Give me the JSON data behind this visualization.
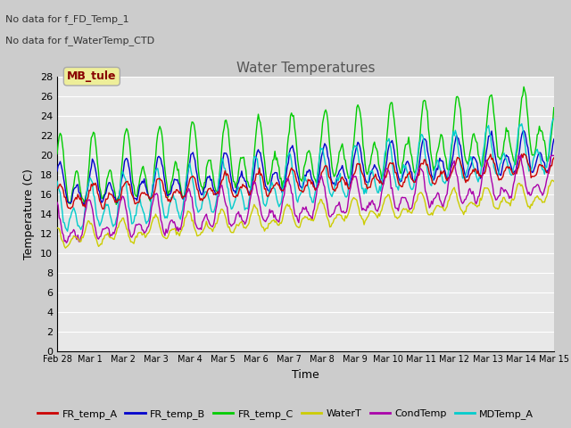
{
  "title": "Water Temperatures",
  "xlabel": "Time",
  "ylabel": "Temperature (C)",
  "annotation1": "No data for f_FD_Temp_1",
  "annotation2": "No data for f_WaterTemp_CTD",
  "legend_station": "MB_tule",
  "ylim": [
    0,
    28
  ],
  "yticks": [
    0,
    2,
    4,
    6,
    8,
    10,
    12,
    14,
    16,
    18,
    20,
    22,
    24,
    26,
    28
  ],
  "series_colors": {
    "FR_temp_A": "#cc0000",
    "FR_temp_B": "#0000cc",
    "FR_temp_C": "#00cc00",
    "WaterT": "#cccc00",
    "CondTemp": "#aa00aa",
    "MDTemp_A": "#00cccc"
  },
  "bg_color": "#e8e8e8",
  "grid_color": "#ffffff",
  "num_points": 480,
  "end_day": 15.0
}
